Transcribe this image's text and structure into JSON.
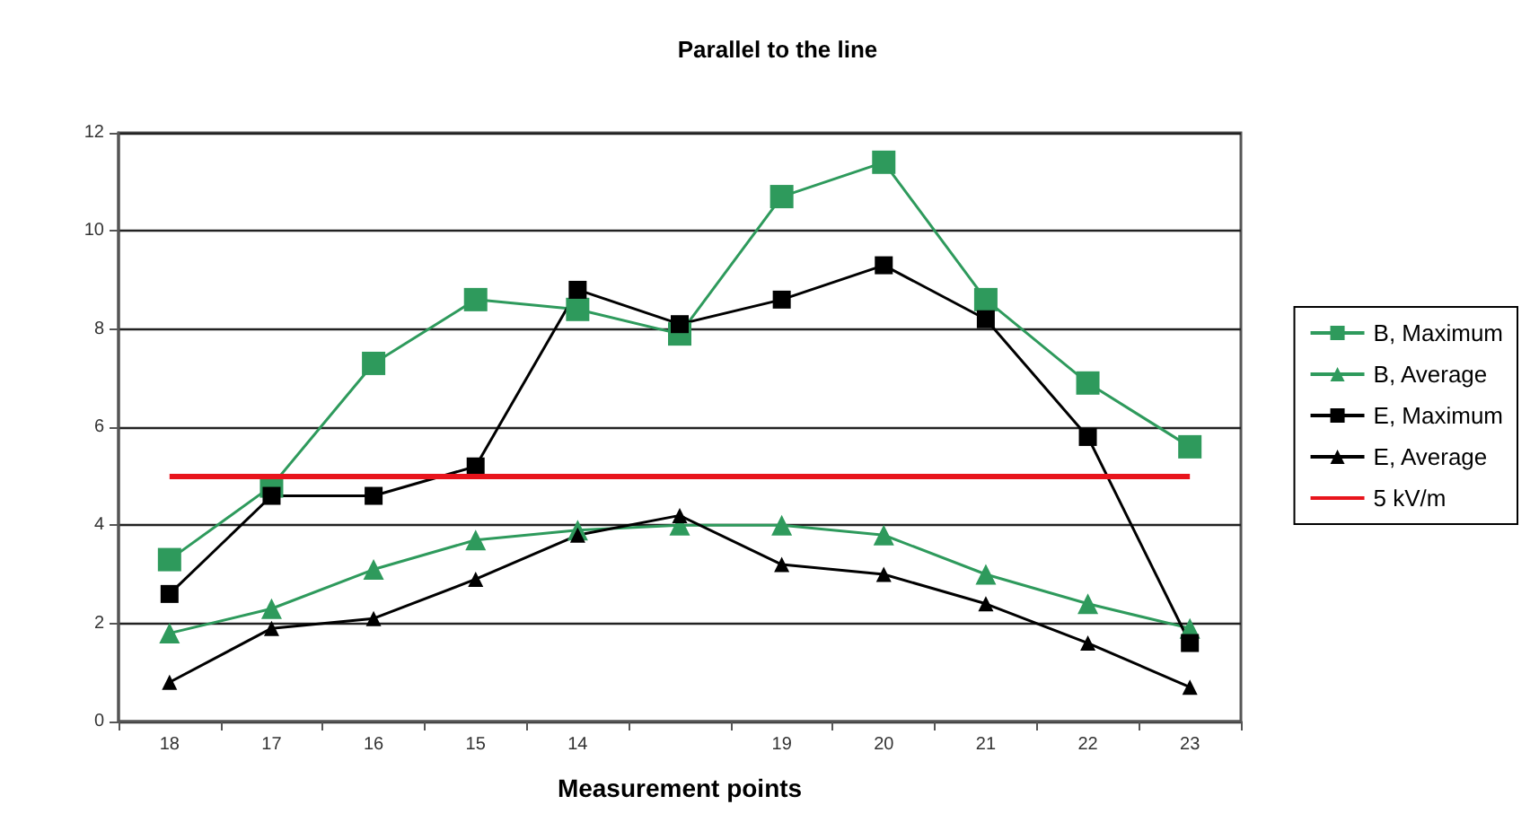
{
  "chart_data": {
    "type": "line",
    "title": "Parallel to the line",
    "xlabel": "Measurement points",
    "categories": [
      "18",
      "17",
      "16",
      "15",
      "14",
      null,
      "19",
      "20",
      "21",
      "22",
      "23"
    ],
    "series": [
      {
        "name": "B, Maximum",
        "color": "#2e9a5c",
        "marker": "square",
        "values": [
          3.3,
          4.8,
          7.3,
          8.6,
          8.4,
          7.9,
          10.7,
          11.4,
          8.6,
          6.9,
          5.6
        ]
      },
      {
        "name": "B, Average",
        "color": "#2e9a5c",
        "marker": "triangle",
        "values": [
          1.8,
          2.3,
          3.1,
          3.7,
          3.9,
          4.0,
          4.0,
          3.8,
          3.0,
          2.4,
          1.9
        ]
      },
      {
        "name": "E, Maximum",
        "color": "#000000",
        "marker": "square",
        "values": [
          2.6,
          4.6,
          4.6,
          5.2,
          8.8,
          8.1,
          8.6,
          9.3,
          8.2,
          5.8,
          1.6
        ]
      },
      {
        "name": "E, Average",
        "color": "#000000",
        "marker": "triangle",
        "values": [
          0.8,
          1.9,
          2.1,
          2.9,
          3.8,
          4.2,
          3.2,
          3.0,
          2.4,
          1.6,
          0.7
        ]
      }
    ],
    "ref_lines": [
      {
        "axis": "y",
        "value": 5,
        "label": "5 kV/m",
        "color": "#e8141c"
      }
    ],
    "ylim": [
      0,
      12
    ],
    "yticks": [
      0,
      2,
      4,
      6,
      8,
      10,
      12
    ],
    "grid": "y",
    "legend": "right",
    "line_style": "solid"
  }
}
